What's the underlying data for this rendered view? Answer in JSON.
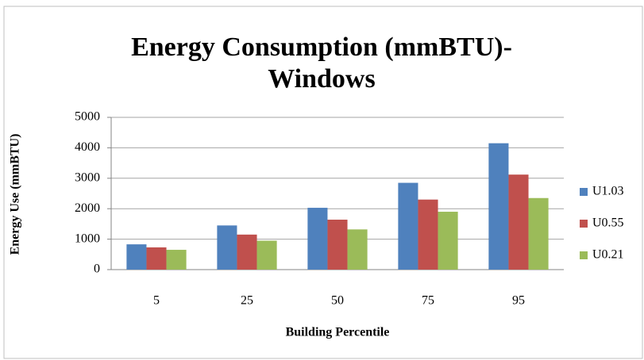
{
  "chart_data": {
    "type": "bar",
    "title": [
      "Energy Consumption (mmBTU)-",
      "Windows"
    ],
    "x_label": "Building Percentile",
    "y_label": "Energy Use (mmBTU)",
    "categories": [
      "5",
      "25",
      "50",
      "75",
      "95"
    ],
    "series": [
      {
        "name": "U1.03",
        "color": "#4f81bd",
        "values": [
          830,
          1450,
          2030,
          2850,
          4150
        ]
      },
      {
        "name": "U0.55",
        "color": "#c0504d",
        "values": [
          730,
          1150,
          1640,
          2300,
          3120
        ]
      },
      {
        "name": "U0.21",
        "color": "#9bbb59",
        "values": [
          650,
          950,
          1320,
          1900,
          2350
        ]
      }
    ],
    "ylim": [
      0,
      5000
    ],
    "yticks": [
      0,
      1000,
      2000,
      3000,
      4000,
      5000
    ],
    "grid": true,
    "legend": "right"
  }
}
